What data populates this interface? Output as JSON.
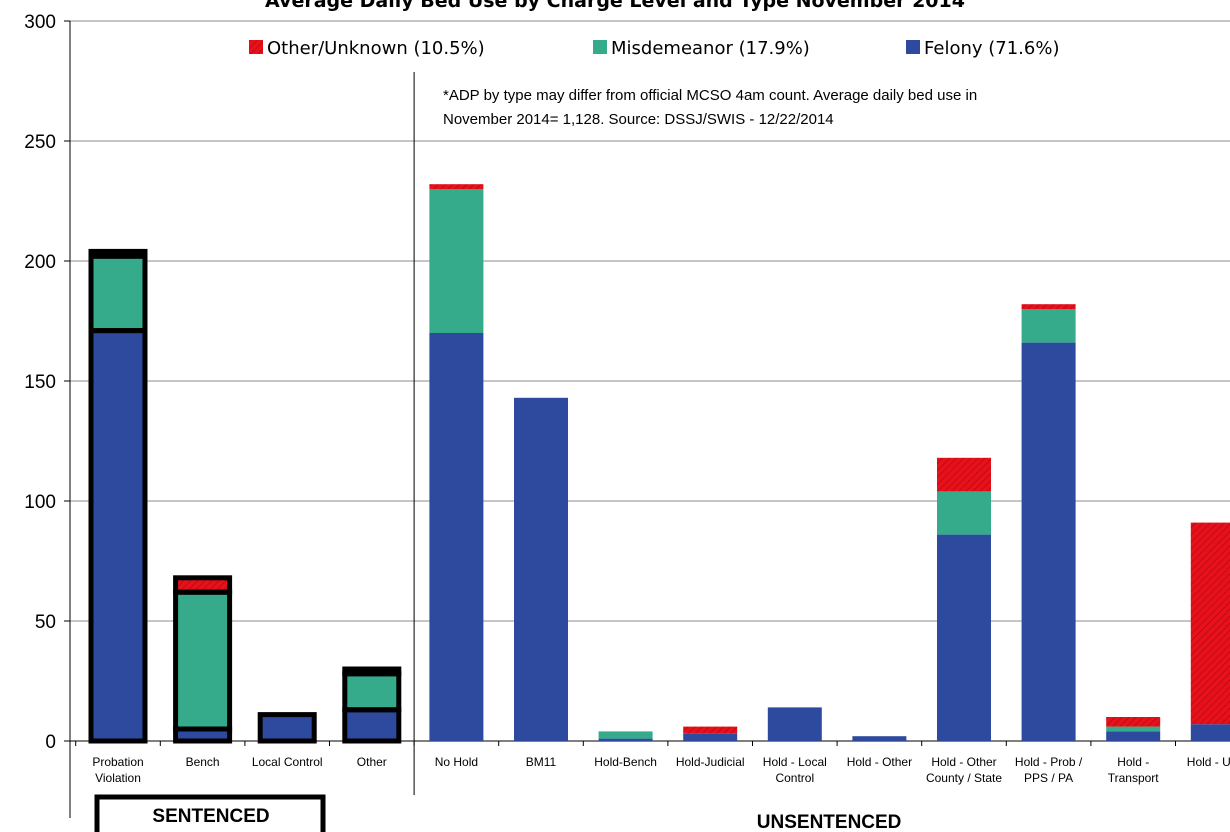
{
  "chart_data": {
    "type": "bar",
    "stacked": true,
    "title": "Average Daily Bed Use by Charge Level and Type November 2014",
    "ylim": [
      0,
      300
    ],
    "yticks": [
      "0",
      "50",
      "100",
      "150",
      "200",
      "250",
      "300"
    ],
    "grid": true,
    "legend_position": "top",
    "categories": [
      "Probation Violation",
      "Bench",
      "Local Control",
      "Other",
      "No Hold",
      "BM11",
      "Hold-Bench",
      "Hold-Judicial",
      "Hold - Local Control",
      "Hold - Other",
      "Hold - Other County / State",
      "Hold - Prob / PPS / PA",
      "Hold - Transport",
      "Hold - USM"
    ],
    "category_lines": [
      [
        "Probation",
        "Violation"
      ],
      [
        "Bench"
      ],
      [
        "Local Control"
      ],
      [
        "Other"
      ],
      [
        "No Hold"
      ],
      [
        "BM11"
      ],
      [
        "Hold-Bench"
      ],
      [
        "Hold-Judicial"
      ],
      [
        "Hold - Local",
        "Control"
      ],
      [
        "Hold - Other"
      ],
      [
        "Hold - Other",
        "County / State"
      ],
      [
        "Hold - Prob /",
        "PPS / PA"
      ],
      [
        "Hold -",
        "Transport"
      ],
      [
        "Hold - USM"
      ]
    ],
    "groups": [
      {
        "label": "SENTENCED",
        "count": 4,
        "boxed": true
      },
      {
        "label": "UNSENTENCED",
        "count": 10,
        "boxed": false
      }
    ],
    "series": [
      {
        "name": "Felony (71.6%)",
        "color": "#2E4A9E",
        "pattern": "solid",
        "values": [
          171,
          5,
          11,
          13,
          170,
          143,
          1,
          3,
          14,
          2,
          86,
          166,
          4,
          7
        ]
      },
      {
        "name": "Misdemeanor (17.9%)",
        "color": "#36AB8B",
        "pattern": "solid",
        "values": [
          31,
          57,
          0,
          15,
          60,
          0,
          3,
          0,
          0,
          0,
          18,
          14,
          2,
          0
        ]
      },
      {
        "name": "Other/Unknown (10.5%)",
        "color": "#E8101A",
        "pattern": "hatched",
        "values": [
          2,
          6,
          0,
          2,
          2,
          0,
          0,
          3,
          0,
          0,
          14,
          2,
          4,
          84
        ]
      }
    ],
    "legend_order": [
      "Other/Unknown (10.5%)",
      "Misdemeanor (17.9%)",
      "Felony (71.6%)"
    ],
    "annotation": [
      "*ADP by type may differ from official MCSO 4am count.  Average daily bed use in",
      "November 2014= 1,128.  Source: DSSJ/SWIS - 12/22/2014"
    ]
  }
}
